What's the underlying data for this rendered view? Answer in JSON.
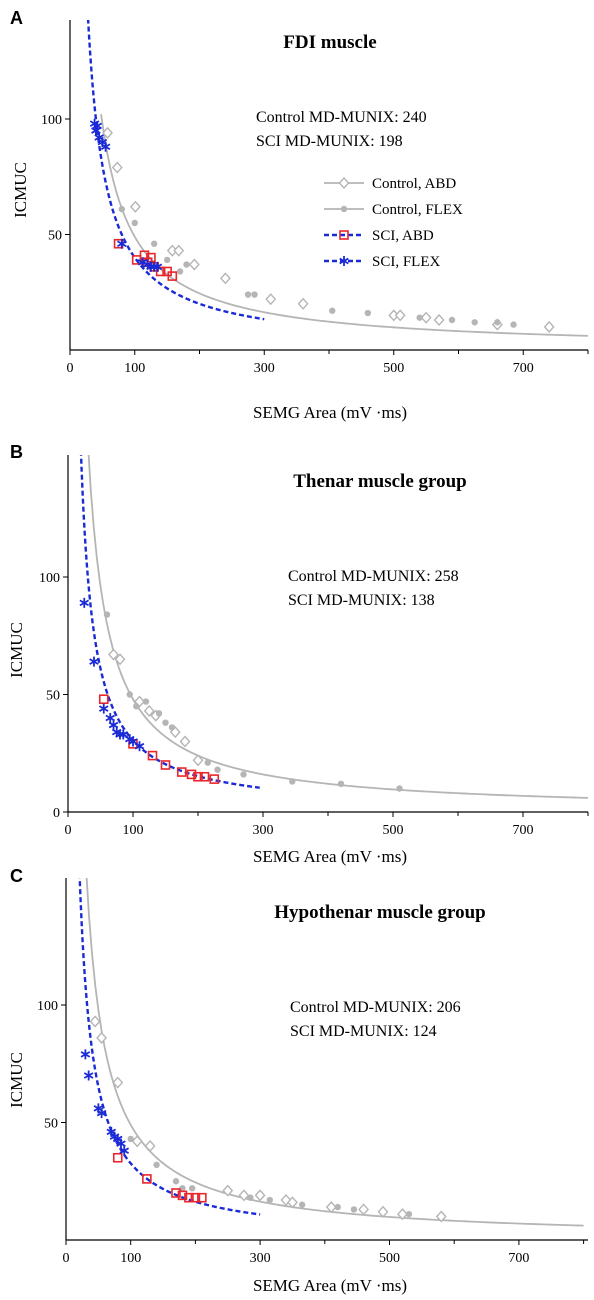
{
  "chart_data": [
    {
      "panel": "A",
      "type": "scatter",
      "title": "FDI muscle",
      "xlabel": "SEMG Area (mV ·ms)",
      "ylabel": "ICMUC",
      "xlim": [
        0,
        800
      ],
      "ylim": [
        0,
        150
      ],
      "xticks": [
        0,
        100,
        300,
        500,
        700
      ],
      "yticks": [
        50,
        100
      ],
      "annotations": [
        "Control MD-MUNIX: 240",
        "SCI MD-MUNIX: 198"
      ],
      "legend": true,
      "legend_position": "right",
      "series": [
        {
          "name": "Control, ABD",
          "marker": "diamond",
          "color": "#b5b5b5",
          "points": [
            [
              58,
              94
            ],
            [
              73,
              79
            ],
            [
              101,
              62
            ],
            [
              158,
              43
            ],
            [
              168,
              43
            ],
            [
              192,
              37
            ],
            [
              240,
              31
            ],
            [
              310,
              22
            ],
            [
              360,
              20
            ],
            [
              500,
              15
            ],
            [
              510,
              15
            ],
            [
              550,
              14
            ],
            [
              570,
              13
            ],
            [
              660,
              11
            ],
            [
              740,
              10
            ]
          ]
        },
        {
          "name": "Control, FLEX",
          "marker": "dot",
          "color": "#b5b5b5",
          "points": [
            [
              80,
              61
            ],
            [
              100,
              55
            ],
            [
              130,
              46
            ],
            [
              150,
              39
            ],
            [
              170,
              34
            ],
            [
              180,
              37
            ],
            [
              275,
              24
            ],
            [
              285,
              24
            ],
            [
              405,
              17
            ],
            [
              460,
              16
            ],
            [
              540,
              14
            ],
            [
              590,
              13
            ],
            [
              625,
              12
            ],
            [
              660,
              12
            ],
            [
              685,
              11
            ]
          ]
        },
        {
          "name": "SCI, ABD",
          "marker": "square",
          "color": "#e8262b",
          "points": [
            [
              75,
              46
            ],
            [
              103,
              39
            ],
            [
              115,
              41
            ],
            [
              120,
              38
            ],
            [
              125,
              40
            ],
            [
              130,
              36
            ],
            [
              140,
              34
            ],
            [
              150,
              34
            ],
            [
              158,
              32
            ]
          ]
        },
        {
          "name": "SCI, FLEX",
          "marker": "asterisk",
          "color": "#1a2bd6",
          "points": [
            [
              38,
              98
            ],
            [
              40,
              95
            ],
            [
              42,
              97
            ],
            [
              45,
              92
            ],
            [
              50,
              90
            ],
            [
              55,
              88
            ],
            [
              80,
              46
            ],
            [
              112,
              38
            ],
            [
              120,
              37
            ],
            [
              125,
              36
            ],
            [
              130,
              36
            ],
            [
              135,
              36
            ]
          ]
        }
      ],
      "fits": [
        {
          "name": "Control",
          "style": "solid",
          "color": "#b5b5b5",
          "k": 4900,
          "x_range": [
            48,
            800
          ]
        },
        {
          "name": "SCI",
          "style": "dashed",
          "color": "#1a2bd6",
          "k": 4000,
          "x_range": [
            26,
            300
          ]
        }
      ]
    },
    {
      "panel": "B",
      "type": "scatter",
      "title": "Thenar muscle group",
      "xlabel": "SEMG Area (mV ·ms)",
      "ylabel": "ICMUC",
      "xlim": [
        0,
        800
      ],
      "ylim": [
        0,
        150
      ],
      "xticks": [
        0,
        100,
        300,
        500,
        700
      ],
      "yticks": [
        0,
        50,
        100
      ],
      "annotations": [
        "Control MD-MUNIX: 258",
        "SCI MD-MUNIX: 138"
      ],
      "legend": false,
      "series": [
        {
          "name": "Control, ABD",
          "marker": "diamond",
          "color": "#b5b5b5",
          "points": [
            [
              70,
              67
            ],
            [
              80,
              65
            ],
            [
              110,
              47
            ],
            [
              125,
              43
            ],
            [
              135,
              41
            ],
            [
              165,
              34
            ],
            [
              180,
              30
            ],
            [
              200,
              22
            ]
          ]
        },
        {
          "name": "Control, FLEX",
          "marker": "dot",
          "color": "#b5b5b5",
          "points": [
            [
              60,
              84
            ],
            [
              95,
              50
            ],
            [
              105,
              45
            ],
            [
              120,
              47
            ],
            [
              140,
              42
            ],
            [
              150,
              38
            ],
            [
              160,
              36
            ],
            [
              215,
              21
            ],
            [
              230,
              18
            ],
            [
              270,
              16
            ],
            [
              345,
              13
            ],
            [
              420,
              12
            ],
            [
              510,
              10
            ]
          ]
        },
        {
          "name": "SCI, ABD",
          "marker": "square",
          "color": "#e8262b",
          "points": [
            [
              55,
              48
            ],
            [
              100,
              29
            ],
            [
              130,
              24
            ],
            [
              150,
              20
            ],
            [
              175,
              17
            ],
            [
              190,
              16
            ],
            [
              200,
              15
            ],
            [
              210,
              15
            ],
            [
              225,
              14
            ]
          ]
        },
        {
          "name": "SCI, FLEX",
          "marker": "asterisk",
          "color": "#1a2bd6",
          "points": [
            [
              25,
              89
            ],
            [
              40,
              64
            ],
            [
              55,
              44
            ],
            [
              65,
              40
            ],
            [
              70,
              37
            ],
            [
              75,
              34
            ],
            [
              80,
              33
            ],
            [
              85,
              33
            ],
            [
              95,
              31
            ],
            [
              100,
              30
            ],
            [
              110,
              28
            ]
          ]
        }
      ],
      "fits": [
        {
          "name": "Control",
          "style": "solid",
          "color": "#b5b5b5",
          "k": 4800,
          "x_range": [
            30,
            800
          ]
        },
        {
          "name": "SCI",
          "style": "dashed",
          "color": "#1a2bd6",
          "k": 3050,
          "x_range": [
            19,
            295
          ]
        }
      ]
    },
    {
      "panel": "C",
      "type": "scatter",
      "title": "Hypothenar muscle group",
      "xlabel": "SEMG Area (mV ·ms)",
      "ylabel": "ICMUC",
      "xlim": [
        0,
        800
      ],
      "ylim": [
        0,
        150
      ],
      "xticks": [
        0,
        100,
        300,
        500,
        700
      ],
      "yticks": [
        50,
        100
      ],
      "annotations": [
        "Control MD-MUNIX: 206",
        "SCI MD-MUNIX: 124"
      ],
      "legend": false,
      "series": [
        {
          "name": "Control, ABD",
          "marker": "diamond",
          "color": "#b5b5b5",
          "points": [
            [
              45,
              93
            ],
            [
              55,
              86
            ],
            [
              80,
              67
            ],
            [
              110,
              42
            ],
            [
              130,
              40
            ],
            [
              250,
              21
            ],
            [
              275,
              19
            ],
            [
              300,
              19
            ],
            [
              340,
              17
            ],
            [
              350,
              16
            ],
            [
              410,
              14
            ],
            [
              460,
              13
            ],
            [
              490,
              12
            ],
            [
              520,
              11
            ],
            [
              580,
              10
            ]
          ]
        },
        {
          "name": "Control, FLEX",
          "marker": "dot",
          "color": "#b5b5b5",
          "points": [
            [
              100,
              43
            ],
            [
              140,
              32
            ],
            [
              170,
              25
            ],
            [
              180,
              22
            ],
            [
              195,
              22
            ],
            [
              285,
              18
            ],
            [
              315,
              17
            ],
            [
              365,
              15
            ],
            [
              420,
              14
            ],
            [
              445,
              13
            ],
            [
              530,
              11
            ]
          ]
        },
        {
          "name": "SCI, ABD",
          "marker": "square",
          "color": "#e8262b",
          "points": [
            [
              80,
              35
            ],
            [
              125,
              26
            ],
            [
              170,
              20
            ],
            [
              180,
              19
            ],
            [
              190,
              18
            ],
            [
              200,
              18
            ],
            [
              210,
              18
            ]
          ]
        },
        {
          "name": "SCI, FLEX",
          "marker": "asterisk",
          "color": "#1a2bd6",
          "points": [
            [
              30,
              79
            ],
            [
              35,
              70
            ],
            [
              50,
              56
            ],
            [
              55,
              54
            ],
            [
              70,
              46
            ],
            [
              75,
              44
            ],
            [
              80,
              43
            ],
            [
              85,
              41
            ],
            [
              90,
              38
            ]
          ]
        }
      ],
      "fits": [
        {
          "name": "Control",
          "style": "solid",
          "color": "#b5b5b5",
          "k": 4900,
          "x_range": [
            26,
            800
          ]
        },
        {
          "name": "SCI",
          "style": "dashed",
          "color": "#1a2bd6",
          "k": 3260,
          "x_range": [
            15,
            300
          ]
        }
      ]
    }
  ]
}
